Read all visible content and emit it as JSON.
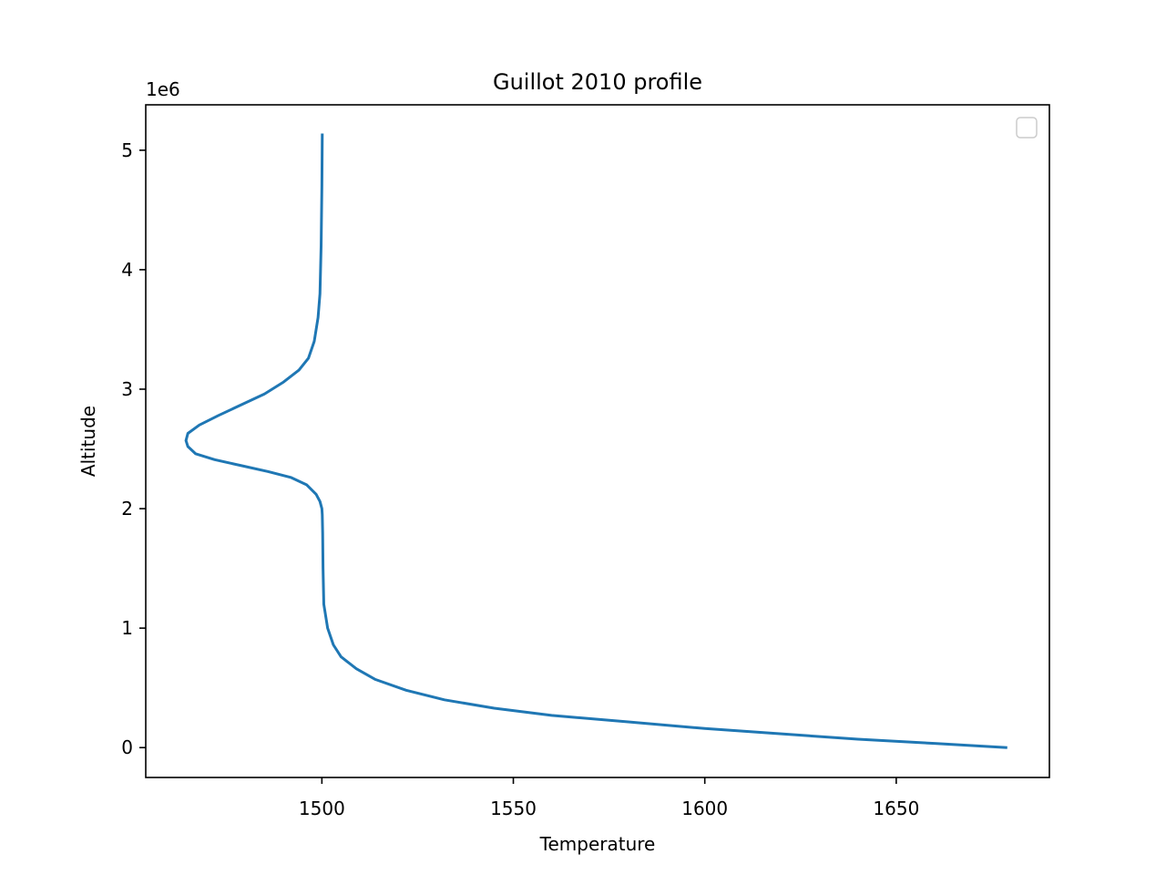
{
  "chart_data": {
    "type": "line",
    "title": "Guillot 2010 profile",
    "xlabel": "Temperature",
    "ylabel": "Altitude",
    "y_offset_text": "1e6",
    "xlim": [
      1454,
      1690
    ],
    "ylim": [
      -250000,
      5380000
    ],
    "xticks": [
      1500,
      1550,
      1600,
      1650
    ],
    "xtick_labels": [
      "1500",
      "1550",
      "1600",
      "1650"
    ],
    "yticks": [
      0,
      1000000,
      2000000,
      3000000,
      4000000,
      5000000
    ],
    "ytick_labels": [
      "0",
      "1",
      "2",
      "3",
      "4",
      "5"
    ],
    "grid": false,
    "legend": {
      "placement": "upper right",
      "entries": []
    },
    "colors": {
      "series": "#1f77b4",
      "axes": "#000000",
      "legend_border": "#cccccc"
    },
    "series": [
      {
        "x": [
          1679,
          1660,
          1640,
          1620,
          1600,
          1580,
          1560,
          1545,
          1532,
          1522,
          1514,
          1509,
          1505,
          1503,
          1501.5,
          1500.5,
          1500.3,
          1500.2,
          1500.1,
          1500.0,
          1499.5,
          1498.5,
          1496,
          1492,
          1486,
          1479,
          1472,
          1467,
          1465,
          1464.5,
          1465,
          1468,
          1473,
          1479,
          1485,
          1490,
          1494,
          1496.5,
          1498,
          1499,
          1499.5,
          1499.8,
          1500.0,
          1500.1
        ],
        "y": [
          0,
          35000,
          70000,
          115000,
          160000,
          215000,
          270000,
          330000,
          400000,
          480000,
          570000,
          660000,
          760000,
          860000,
          1000000,
          1200000,
          1500000,
          1800000,
          1950000,
          2000000,
          2060000,
          2120000,
          2200000,
          2260000,
          2310000,
          2360000,
          2410000,
          2460000,
          2520000,
          2570000,
          2630000,
          2700000,
          2780000,
          2870000,
          2960000,
          3060000,
          3160000,
          3260000,
          3400000,
          3600000,
          3800000,
          4200000,
          4700000,
          5140000
        ]
      }
    ]
  }
}
